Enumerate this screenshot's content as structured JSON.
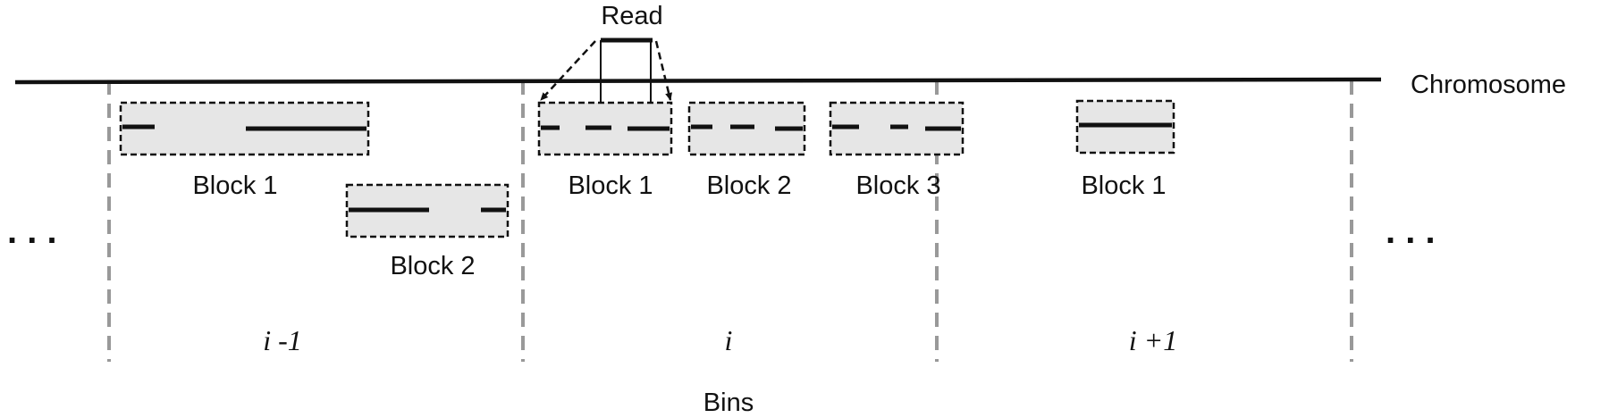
{
  "labels": {
    "read": "Read",
    "chromosome": "Chromosome",
    "bins": "Bins",
    "ellipsis_left": ". . .",
    "ellipsis_right": ". . ."
  },
  "bins": [
    "i -1",
    "i",
    "i +1"
  ],
  "blocks": {
    "bin_prev_block1": "Block 1",
    "bin_prev_block2": "Block 2",
    "bin_mid_block1": "Block 1",
    "bin_mid_block2": "Block 2",
    "bin_mid_block3": "Block 3",
    "bin_next_block1": "Block 1"
  }
}
